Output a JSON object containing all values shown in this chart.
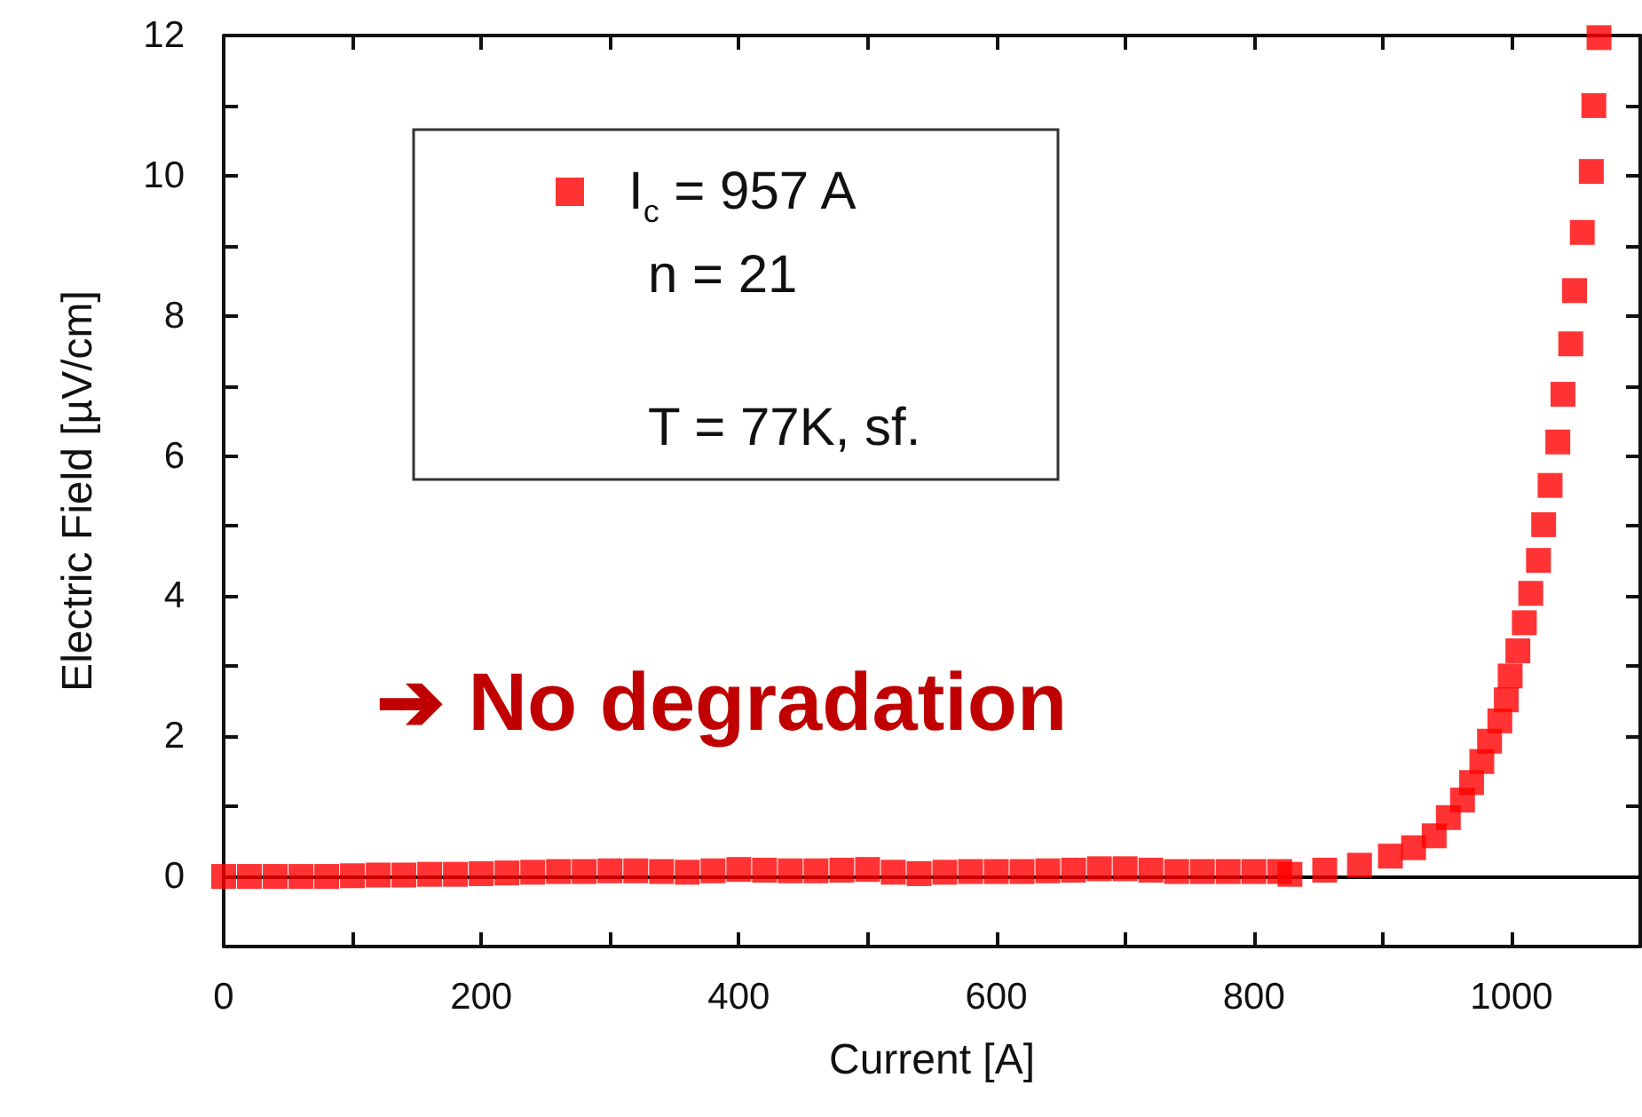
{
  "chart_data": {
    "type": "scatter",
    "xlabel": "Current [A]",
    "ylabel": "Electric Field [µV/cm]",
    "xlim": [
      0,
      1100
    ],
    "ylim": [
      -1,
      12
    ],
    "xticks": [
      0,
      {
        "value": 100,
        "label": null
      },
      200,
      {
        "value": 300,
        "label": null
      },
      400,
      {
        "value": 500,
        "label": null
      },
      600,
      {
        "value": 700,
        "label": null
      },
      800,
      {
        "value": 900,
        "label": null
      },
      1000
    ],
    "yticks": [
      0,
      {
        "value": 1,
        "label": null
      },
      2,
      {
        "value": 3,
        "label": null
      },
      4,
      {
        "value": 5,
        "label": null
      },
      6,
      {
        "value": 7,
        "label": null
      },
      8,
      {
        "value": 9,
        "label": null
      },
      10,
      {
        "value": 11,
        "label": null
      },
      12
    ],
    "marker": "square",
    "legend": "top left",
    "grid": false,
    "series": [
      {
        "name": "I$_{c}$ = 957 A",
        "color": "#ff0000",
        "x": [
          0,
          20,
          40,
          60,
          80,
          100,
          120,
          140,
          160,
          180,
          200,
          220,
          240,
          260,
          280,
          300,
          320,
          340,
          360,
          380,
          400,
          420,
          440,
          460,
          480,
          500,
          520,
          540,
          560,
          580,
          600,
          620,
          640,
          660,
          680,
          700,
          720,
          740,
          760,
          780,
          800,
          820,
          828,
          855,
          882,
          906,
          924,
          940,
          951,
          962,
          969,
          977,
          983,
          991,
          996,
          999,
          1005,
          1010,
          1015,
          1021,
          1025,
          1030,
          1036,
          1040,
          1046,
          1049,
          1055,
          1062,
          1064,
          1068
        ],
        "values": [
          0,
          0,
          0,
          0,
          0,
          0.01,
          0.02,
          0.02,
          0.03,
          0.03,
          0.04,
          0.05,
          0.06,
          0.07,
          0.07,
          0.08,
          0.08,
          0.07,
          0.06,
          0.08,
          0.1,
          0.09,
          0.08,
          0.08,
          0.09,
          0.1,
          0.06,
          0.04,
          0.06,
          0.07,
          0.07,
          0.07,
          0.08,
          0.09,
          0.11,
          0.11,
          0.09,
          0.07,
          0.07,
          0.07,
          0.07,
          0.07,
          0.03,
          0.09,
          0.16,
          0.29,
          0.41,
          0.58,
          0.84,
          1.09,
          1.34,
          1.64,
          1.93,
          2.22,
          2.52,
          2.86,
          3.22,
          3.62,
          4.04,
          4.51,
          5.02,
          5.58,
          6.2,
          6.88,
          7.6,
          8.36,
          9.19,
          10.06,
          11.0,
          11.97
        ]
      }
    ],
    "ref_lines": [
      {
        "axis": "y",
        "value": 0,
        "label": null,
        "color": "#000000"
      }
    ],
    "annotations": [
      "n = 21",
      "T = 77K, sf.",
      "➔ No degradation"
    ]
  }
}
